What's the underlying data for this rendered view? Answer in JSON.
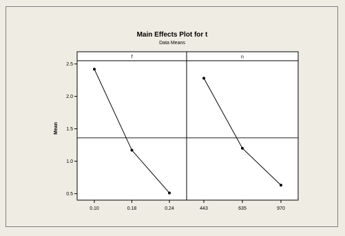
{
  "chart_data": {
    "type": "line",
    "title": "Main Effects Plot for t",
    "subtitle": "Data Means",
    "ylabel": "Mean",
    "ylim": [
      0.4,
      2.55
    ],
    "yticks": [
      "0.5",
      "1.0",
      "1.5",
      "2.0",
      "2.5"
    ],
    "reference_line": 1.36,
    "panels": [
      {
        "name": "f",
        "categories": [
          "0.10",
          "0.18",
          "0.24"
        ],
        "values": [
          2.42,
          1.17,
          0.51
        ]
      },
      {
        "name": "n",
        "categories": [
          "443",
          "635",
          "970"
        ],
        "values": [
          2.28,
          1.2,
          0.63
        ]
      }
    ],
    "colors": {
      "line": "#000000",
      "plot_bg": "#ffffff",
      "figure_bg": "#efece3"
    }
  }
}
